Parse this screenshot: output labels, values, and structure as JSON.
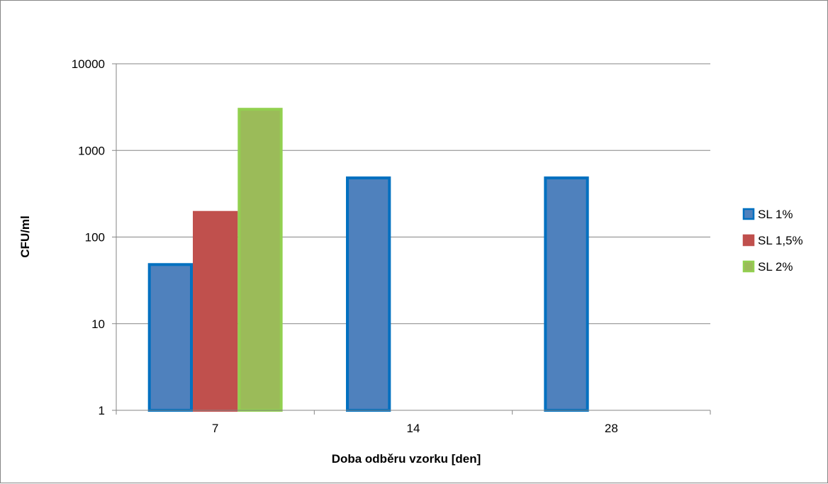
{
  "chart_data": {
    "type": "bar",
    "title": "",
    "xlabel": "Doba odběru vzorku [den]",
    "ylabel": "CFU/ml",
    "yscale": "log",
    "ylim": [
      1,
      10000
    ],
    "yticks": [
      "1",
      "10",
      "100",
      "1000",
      "10000"
    ],
    "grid": true,
    "legend_position": "right",
    "categories": [
      "7",
      "14",
      "28"
    ],
    "series": [
      {
        "name": "SL 1%",
        "values": [
          50,
          500,
          500
        ],
        "color": "#4F81BD",
        "border": "#0070C0"
      },
      {
        "name": "SL 1,5%",
        "values": [
          200,
          null,
          null
        ],
        "color": "#C0504D",
        "border": "#C0504D"
      },
      {
        "name": "SL 2%",
        "values": [
          3100,
          null,
          null
        ],
        "color": "#9BBB59",
        "border": "#92D050"
      }
    ]
  }
}
